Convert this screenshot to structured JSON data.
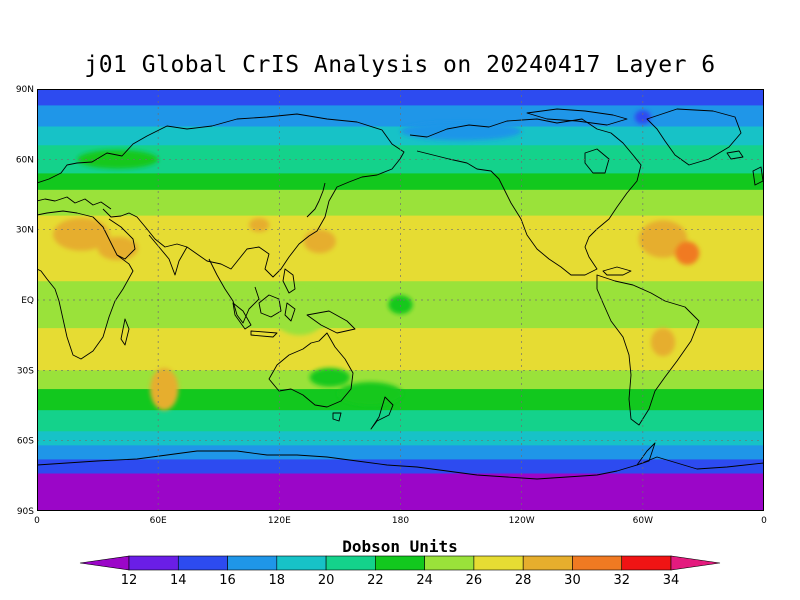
{
  "title": "j01 Global CrIS Analysis on 20240417 Layer 6",
  "colorbar": {
    "title": "Dobson Units",
    "ticks": [
      "12",
      "14",
      "16",
      "18",
      "20",
      "22",
      "24",
      "26",
      "28",
      "30",
      "32",
      "34"
    ],
    "colors": [
      "#9b06c8",
      "#6a1ee6",
      "#2d4bf0",
      "#1f96e8",
      "#17c2c7",
      "#14d28b",
      "#12c81e",
      "#9ae23a",
      "#e6dc33",
      "#e6ae2d",
      "#f07a22",
      "#f01414",
      "#e41a7e"
    ]
  },
  "axes": {
    "y_ticks": [
      "90N",
      "60N",
      "30N",
      "EQ",
      "30S",
      "60S",
      "90S"
    ],
    "x_ticks": [
      "0",
      "60E",
      "120E",
      "180",
      "120W",
      "60W",
      "0"
    ]
  },
  "bands": [
    {
      "lat_top": 90,
      "lat_bot": 83,
      "color": "#2d4bf0"
    },
    {
      "lat_top": 83,
      "lat_bot": 74,
      "color": "#1f96e8"
    },
    {
      "lat_top": 74,
      "lat_bot": 66,
      "color": "#17c2c7"
    },
    {
      "lat_top": 66,
      "lat_bot": 54,
      "color": "#14d28b"
    },
    {
      "lat_top": 54,
      "lat_bot": 47,
      "color": "#12c81e"
    },
    {
      "lat_top": 47,
      "lat_bot": 36,
      "color": "#9ae23a"
    },
    {
      "lat_top": 36,
      "lat_bot": 8,
      "color": "#e6dc33"
    },
    {
      "lat_top": 8,
      "lat_bot": -12,
      "color": "#9ae23a"
    },
    {
      "lat_top": -12,
      "lat_bot": -30,
      "color": "#e6dc33"
    },
    {
      "lat_top": -30,
      "lat_bot": -38,
      "color": "#9ae23a"
    },
    {
      "lat_top": -38,
      "lat_bot": -47,
      "color": "#12c81e"
    },
    {
      "lat_top": -47,
      "lat_bot": -56,
      "color": "#14d28b"
    },
    {
      "lat_top": -56,
      "lat_bot": -62,
      "color": "#17c2c7"
    },
    {
      "lat_top": -62,
      "lat_bot": -68,
      "color": "#1f96e8"
    },
    {
      "lat_top": -68,
      "lat_bot": -74,
      "color": "#2d4bf0"
    },
    {
      "lat_top": -74,
      "lat_bot": -90,
      "color": "#9b06c8"
    }
  ],
  "blobs": [
    {
      "lon": 22,
      "lat": 28,
      "rlon": 14,
      "rlat": 7,
      "color": "#e6ae2d"
    },
    {
      "lon": 40,
      "lat": 22,
      "rlon": 10,
      "rlat": 5,
      "color": "#e6ae2d"
    },
    {
      "lon": 110,
      "lat": 32,
      "rlon": 5,
      "rlat": 3,
      "color": "#e6ae2d"
    },
    {
      "lon": 140,
      "lat": 25,
      "rlon": 8,
      "rlat": 5,
      "color": "#e6ae2d"
    },
    {
      "lon": 310,
      "lat": 26,
      "rlon": 12,
      "rlat": 8,
      "color": "#e6ae2d"
    },
    {
      "lon": 322,
      "lat": 20,
      "rlon": 6,
      "rlat": 5,
      "color": "#f07a22"
    },
    {
      "lon": 63,
      "lat": -38,
      "rlon": 7,
      "rlat": 9,
      "color": "#e6ae2d"
    },
    {
      "lon": 310,
      "lat": -18,
      "rlon": 6,
      "rlat": 6,
      "color": "#e6ae2d"
    },
    {
      "lon": 130,
      "lat": -5,
      "rlon": 14,
      "rlat": 10,
      "color": "#9ae23a"
    },
    {
      "lon": 180,
      "lat": -2,
      "rlon": 6,
      "rlat": 4,
      "color": "#12c81e"
    },
    {
      "lon": 145,
      "lat": -33,
      "rlon": 10,
      "rlat": 4,
      "color": "#12c81e"
    },
    {
      "lon": 165,
      "lat": -40,
      "rlon": 16,
      "rlat": 5,
      "color": "#12c81e"
    },
    {
      "lon": 40,
      "lat": 60,
      "rlon": 20,
      "rlat": 4,
      "color": "#12c81e"
    },
    {
      "lon": 300,
      "lat": 78,
      "rlon": 4,
      "rlat": 3,
      "color": "#2d4bf0"
    },
    {
      "lon": 210,
      "lat": 72,
      "rlon": 30,
      "rlat": 4,
      "color": "#1f96e8"
    }
  ]
}
